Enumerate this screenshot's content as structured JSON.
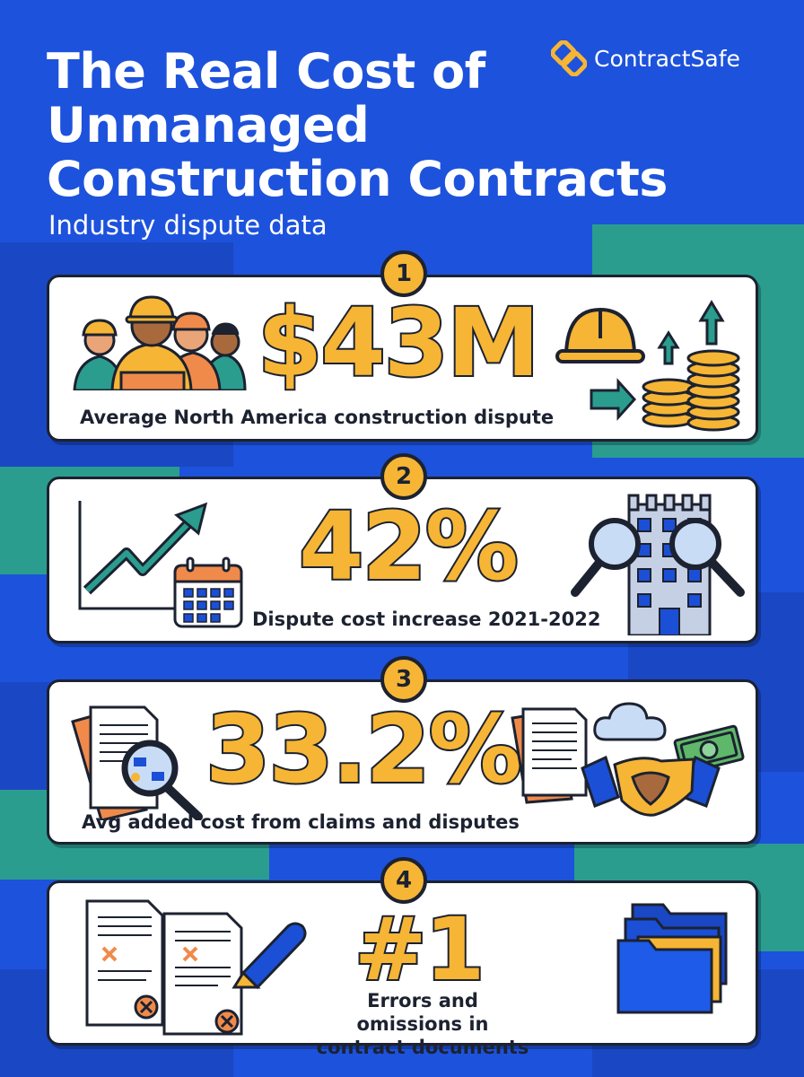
{
  "header": {
    "title_line1": "The Real Cost of",
    "title_line2": "Unmanaged",
    "title_line3": "Construction Contracts",
    "subtitle": "Industry dispute data"
  },
  "brand": {
    "name": "ContractSafe"
  },
  "colors": {
    "background": "#1b4fd6",
    "accent_yellow": "#f6b535",
    "teal": "#2a9d8f",
    "outline": "#1c2230",
    "orange": "#f08a4b"
  },
  "stats": [
    {
      "number": "1",
      "value": "$43M",
      "caption": "Average North America construction dispute"
    },
    {
      "number": "2",
      "value": "42%",
      "caption": "Dispute cost increase 2021-2022"
    },
    {
      "number": "3",
      "value": "33.2%",
      "caption": "Avg added cost from claims and disputes"
    },
    {
      "number": "4",
      "value": "#1",
      "caption_line1": "Errors and omissions in",
      "caption_line2": "contract documents"
    }
  ],
  "icons": {
    "card1": [
      "workers-icon",
      "hard-hat-icon",
      "coins-growth-icon"
    ],
    "card2": [
      "trend-chart-icon",
      "calendar-icon",
      "building-search-icon"
    ],
    "card3": [
      "document-search-icon",
      "handshake-icon",
      "cloud-icon",
      "money-icon"
    ],
    "card4": [
      "error-documents-icon",
      "pen-icon",
      "folders-icon"
    ]
  }
}
